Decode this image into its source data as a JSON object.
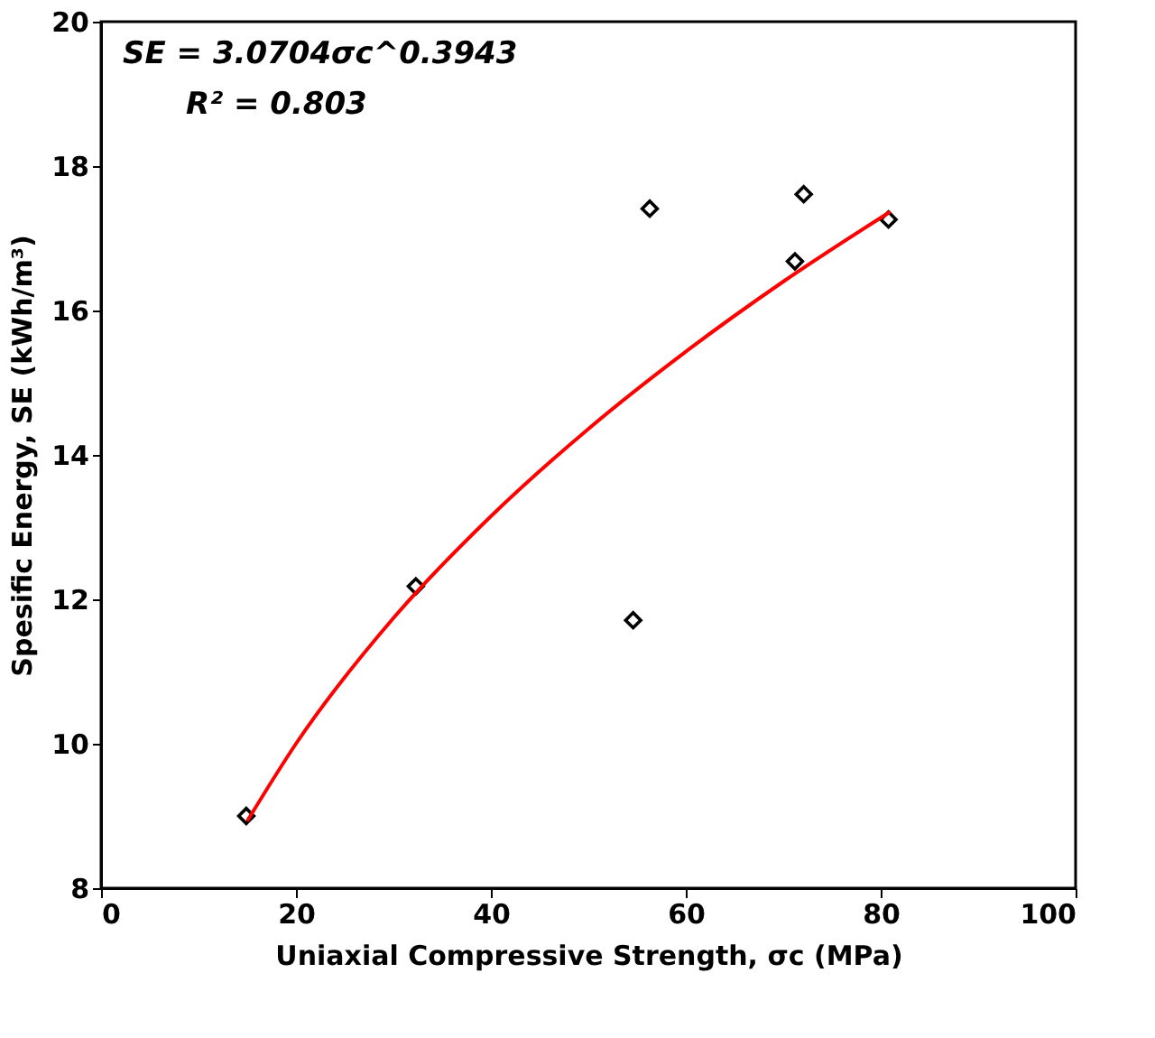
{
  "chart_data": {
    "type": "scatter",
    "xlabel": "Uniaxial Compressive Strength, σc (MPa)",
    "ylabel": "Spesific Energy, SE (kWh/m³)",
    "annotations": [
      "SE = 3.0704σc^0.3943",
      "R² = 0.803"
    ],
    "xlim": [
      0,
      100
    ],
    "xticks": [
      0,
      20,
      40,
      60,
      80,
      100
    ],
    "ylim": [
      8,
      20
    ],
    "yticks": [
      8,
      10,
      12,
      14,
      16,
      18,
      20
    ],
    "grid": false,
    "series": [
      {
        "color": "#000000",
        "marker": "diamond",
        "x": [
          14.9,
          32.3,
          54.6,
          56.3,
          71.2,
          72.1,
          80.8
        ],
        "values": [
          9.0,
          12.18,
          11.71,
          17.41,
          16.68,
          17.61,
          17.26
        ]
      },
      {
        "type": "line",
        "color": "#ff0000",
        "line_style": "solid",
        "x": [
          15,
          20,
          30,
          40,
          50,
          60,
          70,
          81
        ],
        "values": [
          8.93,
          10.0,
          11.74,
          13.15,
          14.36,
          15.43,
          16.4,
          17.37
        ]
      }
    ]
  }
}
